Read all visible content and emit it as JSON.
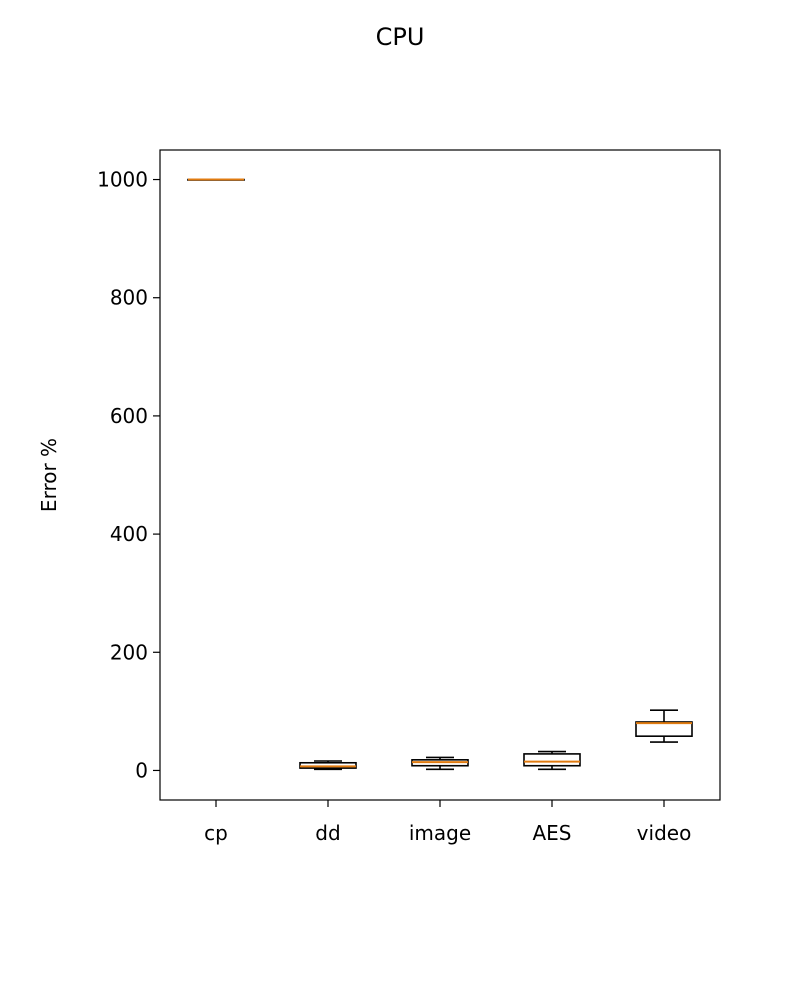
{
  "chart_data": {
    "type": "box",
    "title": "CPU",
    "xlabel": "",
    "ylabel": "Error %",
    "ylim": [
      -50,
      1050
    ],
    "yticks": [
      0,
      200,
      400,
      600,
      800,
      1000
    ],
    "categories": [
      "cp",
      "dd",
      "image",
      "AES",
      "video"
    ],
    "boxes": [
      {
        "label": "cp",
        "whisker_low": 1000,
        "q1": 1000,
        "median": 1000,
        "q3": 1000,
        "whisker_high": 1000
      },
      {
        "label": "dd",
        "whisker_low": 2,
        "q1": 4,
        "median": 7,
        "q3": 13,
        "whisker_high": 16
      },
      {
        "label": "image",
        "whisker_low": 2,
        "q1": 8,
        "median": 14,
        "q3": 18,
        "whisker_high": 22
      },
      {
        "label": "AES",
        "whisker_low": 2,
        "q1": 8,
        "median": 15,
        "q3": 28,
        "whisker_high": 32
      },
      {
        "label": "video",
        "whisker_low": 48,
        "q1": 58,
        "median": 80,
        "q3": 82,
        "whisker_high": 102
      }
    ],
    "grid": false,
    "colors": {
      "box": "#000000",
      "median": "#e07b10"
    }
  }
}
